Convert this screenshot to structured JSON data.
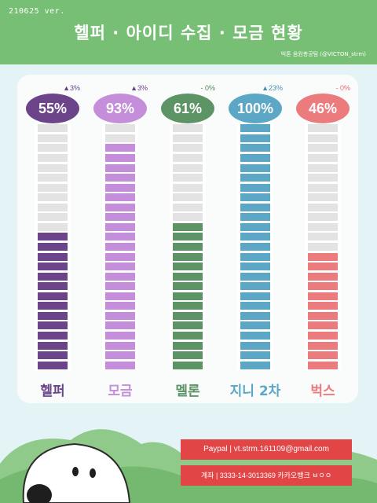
{
  "header": {
    "version": "210625 ver.",
    "title": "헬퍼 · 아이디 수집 · 모금 현황",
    "credit": "빅톤 음원총공팀 (@VICTON_strm)"
  },
  "colors": {
    "header_bg": "#76bf74",
    "background": "#e4f3f6",
    "empty_segment": "#e3e3e3",
    "info_bar": "#e14545"
  },
  "chart_data": {
    "type": "bar",
    "categories": [
      "헬퍼",
      "모금",
      "멜론",
      "지니 2차",
      "벅스"
    ],
    "values": [
      55,
      93,
      61,
      100,
      46
    ],
    "value_labels": [
      "55%",
      "93%",
      "61%",
      "100%",
      "46%"
    ],
    "changes": [
      "▲3%",
      "▲3%",
      "- 0%",
      "▲23%",
      "- 0%"
    ],
    "change_colors": [
      "#6a3f8a",
      "#6a3f8a",
      "#4f8a5a",
      "#4a8fb0",
      "#e06c6c"
    ],
    "colors": [
      "#6b4489",
      "#c48edb",
      "#5c9466",
      "#5ba7c5",
      "#ec7b7e"
    ],
    "light_colors": [
      "#6b4489",
      "#c48edb",
      "#5c9466",
      "#5ba7c5",
      "#ec7b7e"
    ],
    "label_colors": [
      "#6b4489",
      "#c48edb",
      "#5c9466",
      "#5ba7c5",
      "#ec7b7e"
    ],
    "segments": 25,
    "ylim": [
      0,
      100
    ]
  },
  "footer": {
    "paypal": "Paypal  |  vt.strm.161109@gmail.com",
    "account": "계좌  |  3333-14-3013369 카카오뱅크 ㅂㅇㅇ"
  }
}
